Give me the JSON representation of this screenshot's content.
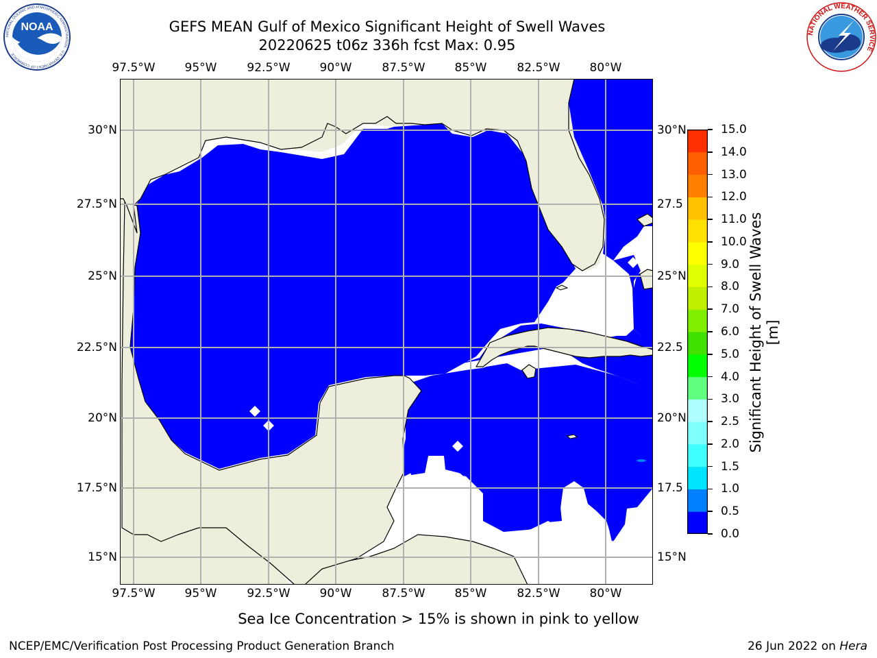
{
  "title": {
    "line1": "GEFS MEAN Gulf of Mexico Significant Height of Swell Waves",
    "line2": "20220625 t06z 336h fcst   Max: 0.95"
  },
  "logos": {
    "noaa": {
      "text": "NOAA",
      "ring_text": "NATIONAL OCEANIC AND ATMOSPHERIC ADMINISTRATION · U.S. DEPARTMENT OF COMMERCE"
    },
    "nws": {
      "ring_text": "NATIONAL WEATHER SERVICE"
    }
  },
  "map": {
    "lon_labels": [
      "97.5°W",
      "95°W",
      "92.5°W",
      "90°W",
      "87.5°W",
      "85°W",
      "82.5°W",
      "80°W"
    ],
    "lat_labels_left": [
      "30°N",
      "27.5°N",
      "25°N",
      "22.5°N",
      "20°N",
      "17.5°N",
      "15°N"
    ],
    "lat_labels_right": [
      "30°N",
      "27.5",
      "25°N",
      "22.5",
      "20°N",
      "17.5",
      "15°N"
    ],
    "colors": {
      "land": "#eeeedd",
      "ocean_low": "#0000ff",
      "ocean_mid": "#0080ff",
      "grid": "#b0b0b0",
      "no_data": "#ffffff"
    }
  },
  "colorbar": {
    "label": "Significant Height of Swell Waves [m]",
    "ticks": [
      "0.0",
      "0.5",
      "1.0",
      "1.5",
      "2.0",
      "2.5",
      "3.0",
      "4.0",
      "5.0",
      "6.0",
      "7.0",
      "8.0",
      "9.0",
      "10.0",
      "11.0",
      "12.0",
      "13.0",
      "14.0",
      "15.0"
    ],
    "colors": [
      "#0000ff",
      "#0080ff",
      "#00e5ff",
      "#40ffff",
      "#80ffff",
      "#b0ffff",
      "#60ff80",
      "#00ff00",
      "#40e000",
      "#80f000",
      "#c0f000",
      "#e0ff00",
      "#ffff00",
      "#ffe000",
      "#ffc000",
      "#ff8000",
      "#ff6000",
      "#ff3000",
      "#ff0000"
    ]
  },
  "ice_note": "Sea Ice Concentration > 15% is shown in pink to yellow",
  "footer": {
    "left": "NCEP/EMC/Verification Post Processing Product Generation Branch",
    "date": "26 Jun 2022 on ",
    "machine": "Hera"
  }
}
